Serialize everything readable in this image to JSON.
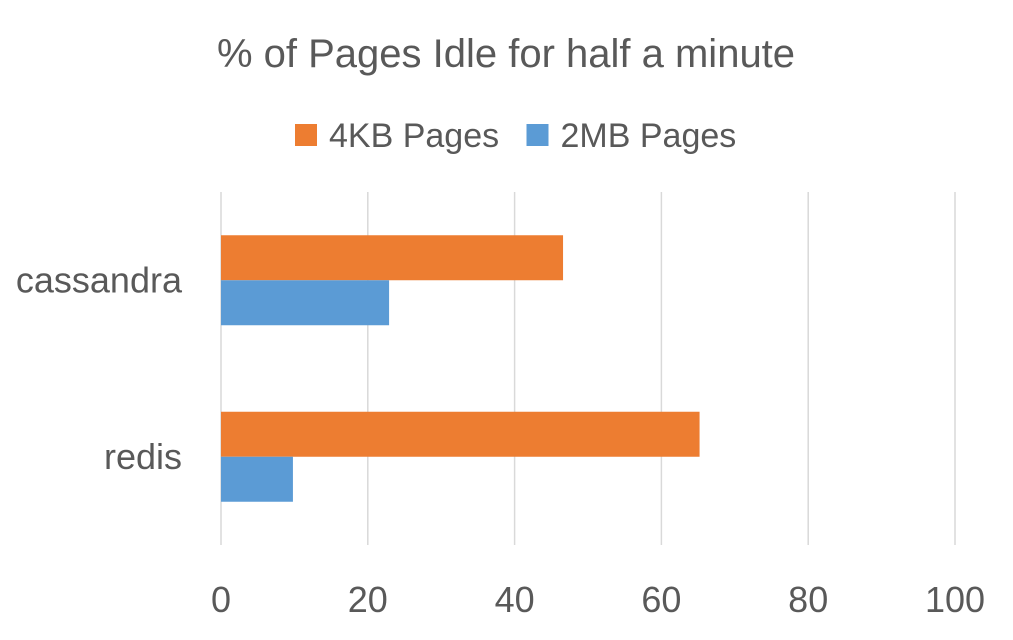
{
  "chart_data": {
    "type": "bar",
    "orientation": "horizontal",
    "title": "% of Pages Idle for half a minute",
    "categories": [
      "cassandra",
      "redis"
    ],
    "series": [
      {
        "name": "4KB Pages",
        "color": "#ED7D31",
        "values": [
          46.6,
          65.2
        ]
      },
      {
        "name": "2MB Pages",
        "color": "#5B9BD5",
        "values": [
          22.9,
          9.8
        ]
      }
    ],
    "xlim": [
      0,
      100
    ],
    "xticks": [
      0,
      20,
      40,
      60,
      80,
      100
    ],
    "xlabel": "",
    "ylabel": "",
    "grid": true,
    "legend_position": "top"
  }
}
